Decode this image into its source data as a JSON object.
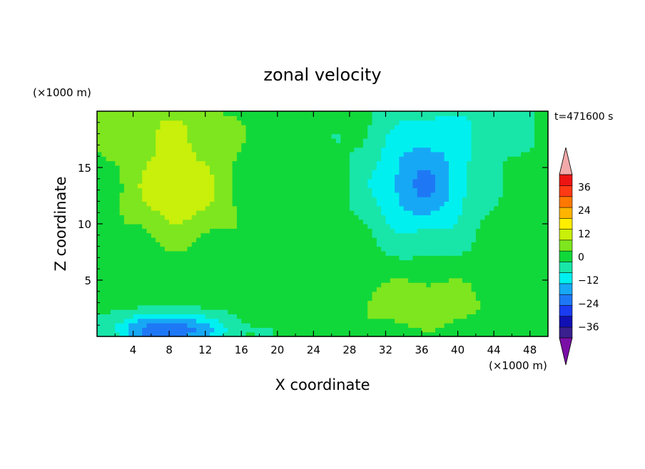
{
  "chart_data": {
    "type": "heatmap",
    "title": "zonal velocity",
    "xlabel": "X coordinate",
    "ylabel": "Z coordinate",
    "x_unit": "(×1000 m)",
    "y_unit": "(×1000 m)",
    "time_label": "t=471600 s",
    "xlim": [
      0,
      50
    ],
    "ylim": [
      0,
      20
    ],
    "x_ticks": [
      4,
      8,
      12,
      16,
      20,
      24,
      28,
      32,
      36,
      40,
      44,
      48
    ],
    "y_ticks": [
      5,
      10,
      15
    ],
    "colorbar": {
      "ticks": [
        36,
        24,
        12,
        0,
        -12,
        -24,
        -36
      ],
      "levels": [
        -42,
        -36,
        -30,
        -24,
        -18,
        -12,
        -6,
        0,
        6,
        12,
        18,
        24,
        30,
        36,
        42
      ],
      "colors": [
        "#7a0fa6",
        "#3a1f8f",
        "#1010b4",
        "#1a3cf0",
        "#1e78f5",
        "#17a8f5",
        "#00f0f0",
        "#18e6a8",
        "#11d83a",
        "#7ee61e",
        "#c8f00a",
        "#ffee00",
        "#ffb400",
        "#ff7800",
        "#ff3a14",
        "#ee1414",
        "#f2a9a9"
      ]
    },
    "field_features": [
      {
        "name": "upper-left positive core",
        "x": 9,
        "z": 13,
        "sx": 6,
        "sz": 4.5,
        "value": 14
      },
      {
        "name": "upper-right negative core",
        "x": 36,
        "z": 13.5,
        "sx": 5.5,
        "sz": 4.5,
        "value": -20
      },
      {
        "name": "lower-left negative core",
        "x": 8,
        "z": 0.6,
        "sx": 6,
        "sz": 1.4,
        "value": -25
      },
      {
        "name": "lower-right positive core",
        "x": 36,
        "z": 3,
        "sx": 7,
        "sz": 2.2,
        "value": 10
      },
      {
        "name": "top-left band",
        "x": 5,
        "z": 19,
        "sx": 10,
        "sz": 3,
        "value": 8
      },
      {
        "name": "top-right band",
        "x": 40,
        "z": 19,
        "sx": 8,
        "sz": 3,
        "value": -6
      }
    ]
  }
}
